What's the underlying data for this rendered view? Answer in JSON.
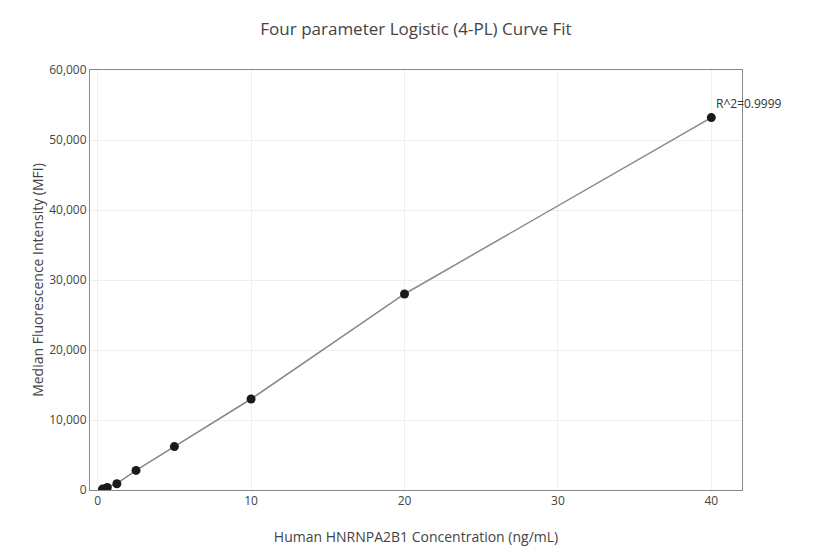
{
  "chart_data": {
    "type": "line",
    "title": "Four parameter Logistic (4-PL) Curve Fit",
    "x_label": "Human HNRNPA2B1 Concentration (ng/mL)",
    "y_label": "Median Fluorescence Intensity (MFI)",
    "x": [
      0.313,
      0.625,
      1.25,
      2.5,
      5.0,
      10.0,
      20.0,
      40.0
    ],
    "series": [
      {
        "type": "line",
        "color": "#888888",
        "values": [
          130,
          350,
          900,
          2800,
          6200,
          13000,
          28000,
          53200
        ]
      },
      {
        "type": "scatter",
        "color": "#1a1a1a",
        "marker": "circle",
        "values": [
          130,
          350,
          900,
          2800,
          6200,
          13000,
          28000,
          53200
        ]
      }
    ],
    "xlim": [
      -0.5,
      42
    ],
    "ylim": [
      0,
      60000
    ],
    "xticks": [
      0,
      10,
      20,
      30,
      40
    ],
    "yticks": [
      0,
      {
        "value": 10000,
        "label": "10,000"
      },
      {
        "value": 20000,
        "label": "20,000"
      },
      {
        "value": 30000,
        "label": "30,000"
      },
      {
        "value": 40000,
        "label": "40,000"
      },
      {
        "value": 50000,
        "label": "50,000"
      },
      {
        "value": 60000,
        "label": "60,000"
      }
    ],
    "annotations": [
      "R^2=0.9999"
    ],
    "grid": true
  }
}
